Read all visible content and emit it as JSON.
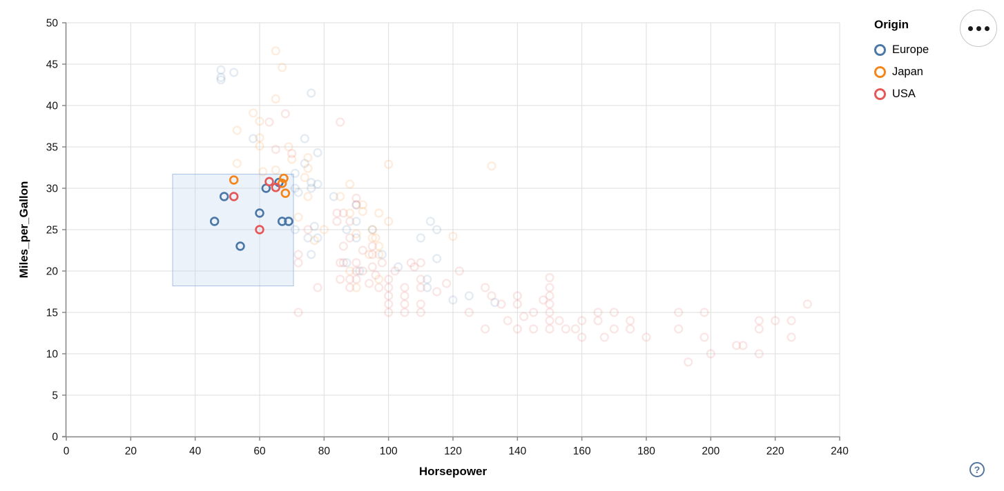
{
  "window": {
    "background": "#ffffff"
  },
  "legend": {
    "title": "Origin",
    "items": [
      {
        "label": "Europe",
        "color": "#4c78a8"
      },
      {
        "label": "Japan",
        "color": "#f58518"
      },
      {
        "label": "USA",
        "color": "#e45756"
      }
    ]
  },
  "controls": {
    "menu_button": {
      "icon": "more-options-icon"
    },
    "help_button": {
      "glyph": "?"
    }
  },
  "chart_data": {
    "type": "scatter",
    "title": "",
    "xlabel": "Horsepower",
    "ylabel": "Miles_per_Gallon",
    "xlim": [
      0,
      240
    ],
    "ylim": [
      0,
      50
    ],
    "x_ticks": [
      0,
      20,
      40,
      60,
      80,
      100,
      120,
      140,
      160,
      180,
      200,
      220,
      240
    ],
    "y_ticks": [
      0,
      5,
      10,
      15,
      20,
      25,
      30,
      35,
      40,
      45,
      50
    ],
    "grid": true,
    "legend_position": "top-right",
    "mark": "open-circle",
    "unselected_opacity": 0.15,
    "selected_opacity": 1.0,
    "grid_color": "#dddddd",
    "axis_color": "#888888",
    "label_color": "#111111",
    "brush_selection": {
      "x": [
        33,
        70.5
      ],
      "y": [
        18.2,
        31.7
      ],
      "fill": "#b9cfec",
      "fill_opacity": 0.28,
      "stroke": "#a5c0e6"
    },
    "series": [
      {
        "name": "Europe",
        "color": "#4c78a8",
        "selected_points": [
          [
            46,
            26
          ],
          [
            49,
            29
          ],
          [
            54,
            23
          ],
          [
            60,
            27
          ],
          [
            62,
            30
          ],
          [
            66,
            30.7
          ],
          [
            67,
            26
          ],
          [
            69,
            26
          ]
        ],
        "points": [
          [
            87,
            25
          ],
          [
            90,
            24
          ],
          [
            95,
            25
          ],
          [
            113,
            26
          ],
          [
            90,
            28
          ],
          [
            71,
            30
          ],
          [
            76,
            30
          ],
          [
            90,
            26
          ],
          [
            75,
            24
          ],
          [
            91,
            20
          ],
          [
            112,
            19
          ],
          [
            110,
            24
          ],
          [
            112,
            18
          ],
          [
            76,
            22
          ],
          [
            87,
            21
          ],
          [
            98,
            22
          ],
          [
            115,
            25
          ],
          [
            83,
            29
          ],
          [
            78,
            24
          ],
          [
            71,
            25
          ],
          [
            58,
            36
          ],
          [
            71,
            31.8
          ],
          [
            72,
            29.5
          ],
          [
            103,
            20.5
          ],
          [
            133,
            16.2
          ],
          [
            125,
            17
          ],
          [
            115,
            21.5
          ],
          [
            120,
            16.5
          ],
          [
            48,
            43.1
          ],
          [
            48,
            44.3
          ],
          [
            48,
            43.4
          ],
          [
            76,
            41.5
          ],
          [
            78,
            30.5
          ],
          [
            78,
            34.3
          ],
          [
            77,
            25.4
          ],
          [
            76,
            30.7
          ],
          [
            74,
            33
          ],
          [
            52,
            44
          ],
          [
            74,
            36
          ]
        ]
      },
      {
        "name": "Japan",
        "color": "#f58518",
        "selected_points": [
          [
            52,
            31
          ],
          [
            67.5,
            31.2
          ],
          [
            67,
            30.6
          ],
          [
            68,
            29.4
          ]
        ],
        "points": [
          [
            95,
            24
          ],
          [
            88,
            27
          ],
          [
            92,
            28
          ],
          [
            97,
            23
          ],
          [
            90,
            18
          ],
          [
            94,
            22
          ],
          [
            88,
            20
          ],
          [
            95,
            25
          ],
          [
            97,
            19
          ],
          [
            75,
            29
          ],
          [
            61,
            32
          ],
          [
            53,
            33
          ],
          [
            69,
            35
          ],
          [
            65,
            32.2
          ],
          [
            70,
            33.5
          ],
          [
            60,
            36.1
          ],
          [
            58,
            39.1
          ],
          [
            75,
            33.7
          ],
          [
            75,
            32.4
          ],
          [
            74,
            31.3
          ],
          [
            92,
            27.2
          ],
          [
            100,
            32.9
          ],
          [
            132,
            32.7
          ],
          [
            65,
            40.8
          ],
          [
            65,
            46.6
          ],
          [
            67,
            44.6
          ],
          [
            60,
            38.1
          ],
          [
            60,
            35.1
          ],
          [
            53,
            37
          ],
          [
            72,
            26.5
          ],
          [
            88,
            30.5
          ],
          [
            85,
            29
          ],
          [
            97,
            27
          ],
          [
            96,
            24
          ],
          [
            120,
            24.2
          ],
          [
            97,
            22
          ],
          [
            100,
            26
          ],
          [
            90,
            24.5
          ],
          [
            80,
            25
          ],
          [
            77,
            23.7
          ]
        ]
      },
      {
        "name": "USA",
        "color": "#e45756",
        "selected_points": [
          [
            52,
            29
          ],
          [
            60,
            25
          ],
          [
            63,
            30.8
          ],
          [
            65,
            30.1
          ]
        ],
        "points": [
          [
            130,
            18
          ],
          [
            165,
            15
          ],
          [
            150,
            18
          ],
          [
            150,
            16
          ],
          [
            140,
            17
          ],
          [
            198,
            15
          ],
          [
            220,
            14
          ],
          [
            215,
            14
          ],
          [
            225,
            14
          ],
          [
            190,
            15
          ],
          [
            170,
            15
          ],
          [
            160,
            14
          ],
          [
            150,
            15
          ],
          [
            215,
            10
          ],
          [
            200,
            10
          ],
          [
            210,
            11
          ],
          [
            193,
            9
          ],
          [
            225,
            12
          ],
          [
            208,
            11
          ],
          [
            230,
            16
          ],
          [
            215,
            13
          ],
          [
            180,
            12
          ],
          [
            170,
            13
          ],
          [
            175,
            13
          ],
          [
            153,
            14
          ],
          [
            165,
            14
          ],
          [
            175,
            14
          ],
          [
            150,
            14
          ],
          [
            167,
            12
          ],
          [
            155,
            13
          ],
          [
            160,
            12
          ],
          [
            190,
            13
          ],
          [
            150,
            13
          ],
          [
            158,
            13
          ],
          [
            137,
            14
          ],
          [
            198,
            12
          ],
          [
            145,
            13
          ],
          [
            150,
            17
          ],
          [
            130,
            13
          ],
          [
            140,
            13
          ],
          [
            145,
            15
          ],
          [
            140,
            16
          ],
          [
            150,
            19.2
          ],
          [
            95,
            22
          ],
          [
            97,
            18
          ],
          [
            85,
            21
          ],
          [
            90,
            21
          ],
          [
            105,
            16
          ],
          [
            100,
            17
          ],
          [
            88,
            19
          ],
          [
            100,
            18
          ],
          [
            110,
            18
          ],
          [
            72,
            22
          ],
          [
            100,
            19
          ],
          [
            88,
            18
          ],
          [
            86,
            23
          ],
          [
            90,
            20
          ],
          [
            75,
            25
          ],
          [
            72,
            21
          ],
          [
            86,
            21
          ],
          [
            95,
            23
          ],
          [
            105,
            18
          ],
          [
            105,
            17
          ],
          [
            110,
            16
          ],
          [
            107,
            21
          ],
          [
            105,
            15
          ],
          [
            100,
            16
          ],
          [
            110,
            21
          ],
          [
            85,
            19
          ],
          [
            92,
            20
          ],
          [
            110,
            19
          ],
          [
            90,
            19
          ],
          [
            84,
            26
          ],
          [
            86,
            27
          ],
          [
            84,
            27
          ],
          [
            88,
            26
          ],
          [
            90,
            28
          ],
          [
            88,
            24
          ],
          [
            100,
            15
          ],
          [
            110,
            15
          ],
          [
            122,
            20
          ],
          [
            90,
            28.8
          ],
          [
            95,
            20.5
          ],
          [
            98,
            21
          ],
          [
            92,
            22.5
          ],
          [
            102,
            20
          ],
          [
            96,
            19.5
          ],
          [
            94,
            18.5
          ],
          [
            108,
            20.5
          ],
          [
            115,
            17.5
          ],
          [
            118,
            18.5
          ],
          [
            125,
            15
          ],
          [
            132,
            17
          ],
          [
            142,
            14.5
          ],
          [
            148,
            16.5
          ],
          [
            135,
            16
          ],
          [
            68,
            39
          ],
          [
            63,
            38
          ],
          [
            70,
            34.2
          ],
          [
            65,
            34.7
          ],
          [
            85,
            38
          ],
          [
            72,
            15
          ],
          [
            78,
            18
          ]
        ]
      }
    ]
  }
}
